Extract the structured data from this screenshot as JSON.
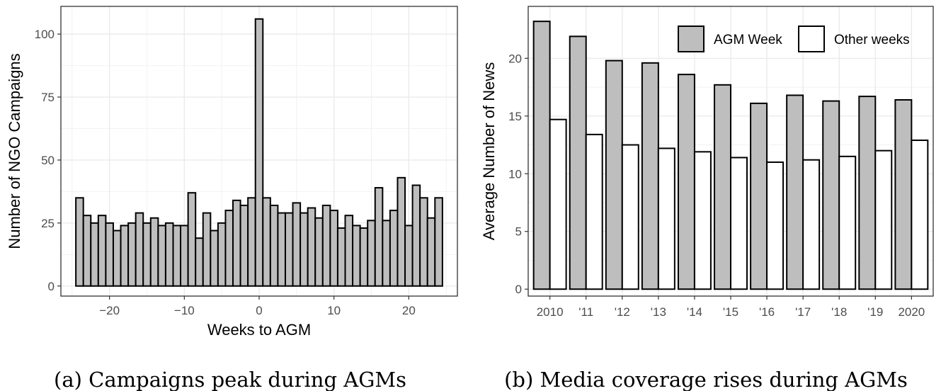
{
  "chart_data": [
    {
      "type": "bar",
      "xlabel": "Weeks to AGM",
      "ylabel": "Number of NGO Campaigns",
      "caption": "(a) Campaigns peak during AGMs",
      "xlim": [
        -26.5,
        26.5
      ],
      "ylim": [
        -4,
        111
      ],
      "xticks": [
        -20,
        -10,
        0,
        10,
        20
      ],
      "xtick_labels": [
        "−20",
        "−10",
        "0",
        "10",
        "20"
      ],
      "yticks": [
        0,
        25,
        50,
        75,
        100
      ],
      "ytick_labels": [
        "0",
        "25",
        "50",
        "75",
        "100"
      ],
      "grid": true,
      "bar_color": "#bebebe",
      "x": [
        -24,
        -23,
        -22,
        -21,
        -20,
        -19,
        -18,
        -17,
        -16,
        -15,
        -14,
        -13,
        -12,
        -11,
        -10,
        -9,
        -8,
        -7,
        -6,
        -5,
        -4,
        -3,
        -2,
        -1,
        0,
        1,
        2,
        3,
        4,
        5,
        6,
        7,
        8,
        9,
        10,
        11,
        12,
        13,
        14,
        15,
        16,
        17,
        18,
        19,
        20,
        21,
        22,
        23,
        24
      ],
      "values": [
        35,
        28,
        25,
        28,
        25,
        22,
        24,
        25,
        29,
        25,
        27,
        24,
        25,
        24,
        24,
        37,
        19,
        29,
        22,
        25,
        30,
        34,
        32,
        35,
        106,
        35,
        32,
        29,
        29,
        33,
        29,
        31,
        27,
        32,
        30,
        23,
        28,
        24,
        23,
        26,
        39,
        26,
        30,
        43,
        24,
        40,
        35,
        27,
        35
      ]
    },
    {
      "type": "bar",
      "xlabel": "",
      "ylabel": "Average Number of News",
      "caption": "(b) Media coverage rises during AGMs",
      "categories": [
        "2010",
        "'11",
        "'12",
        "'13",
        "'14",
        "'15",
        "'16",
        "'17",
        "'18",
        "'19",
        "2020"
      ],
      "ylim": [
        -0.6,
        24.5
      ],
      "yticks": [
        0,
        5,
        10,
        15,
        20
      ],
      "ytick_labels": [
        "0",
        "5",
        "10",
        "15",
        "20"
      ],
      "grid": true,
      "legend_position": "top-right",
      "series": [
        {
          "name": "AGM Week",
          "color": "#bebebe",
          "values": [
            23.2,
            21.9,
            19.8,
            19.6,
            18.6,
            17.7,
            16.1,
            16.8,
            16.3,
            16.7,
            16.4
          ]
        },
        {
          "name": "Other weeks",
          "color": "#ffffff",
          "values": [
            14.7,
            13.4,
            12.5,
            12.2,
            11.9,
            11.4,
            11.0,
            11.2,
            11.5,
            12.0,
            12.9
          ]
        }
      ]
    }
  ]
}
